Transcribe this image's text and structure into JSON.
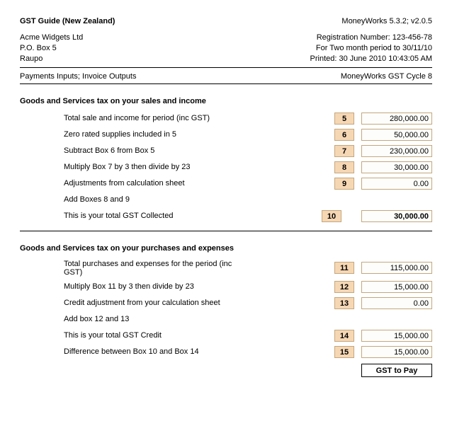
{
  "header": {
    "title_left": "GST Guide (New Zealand)",
    "title_right": "MoneyWorks 5.3.2;  v2.0.5",
    "company_name": "Acme Widgets Ltd",
    "company_addr1": "P.O. Box 5",
    "company_addr2": "Raupo",
    "registration_label": "Registration Number: 123-456-78",
    "period_label": "For Two month period to 30/11/10",
    "printed_label": "Printed: 30 June 2010 10:43:05 AM",
    "basis_left": "Payments Inputs; Invoice Outputs",
    "basis_right": "MoneyWorks GST Cycle 8"
  },
  "colors": {
    "box_bg": "#f6d7b4",
    "box_border": "#c4a77c",
    "hr": "#000000"
  },
  "sales": {
    "title": "Goods and Services tax on your sales and income",
    "rows": [
      {
        "desc": "Total sale and income for period (inc GST)",
        "box": "5",
        "val": "280,000.00"
      },
      {
        "desc": "Zero rated supplies included in 5",
        "box": "6",
        "val": "50,000.00"
      },
      {
        "desc": "Subtract Box 6 from Box 5",
        "box": "7",
        "val": "230,000.00"
      },
      {
        "desc": "Multiply Box 7 by 3 then divide by 23",
        "box": "8",
        "val": "30,000.00"
      },
      {
        "desc": "Adjustments from calculation sheet",
        "box": "9",
        "val": "0.00"
      },
      {
        "desc": "Add Boxes 8 and 9",
        "box": "",
        "val": ""
      },
      {
        "desc": "This is your total GST Collected",
        "box": "10",
        "val": "30,000.00",
        "gap": true
      }
    ]
  },
  "purchases": {
    "title": "Goods and Services tax on your purchases and expenses",
    "rows": [
      {
        "desc": "Total purchases and expenses for the period (inc GST)",
        "box": "11",
        "val": "115,000.00"
      },
      {
        "desc": "Multiply Box 11 by 3 then divide by 23",
        "box": "12",
        "val": "15,000.00"
      },
      {
        "desc": "Credit adjustment from your calculation sheet",
        "box": "13",
        "val": "0.00"
      },
      {
        "desc": "Add box 12 and 13",
        "box": "",
        "val": ""
      },
      {
        "desc": "This is your total GST Credit",
        "box": "14",
        "val": "15,000.00"
      },
      {
        "desc": "Difference between Box 10 and Box 14",
        "box": "15",
        "val": "15,000.00"
      }
    ]
  },
  "footer": {
    "result": "GST to Pay"
  }
}
